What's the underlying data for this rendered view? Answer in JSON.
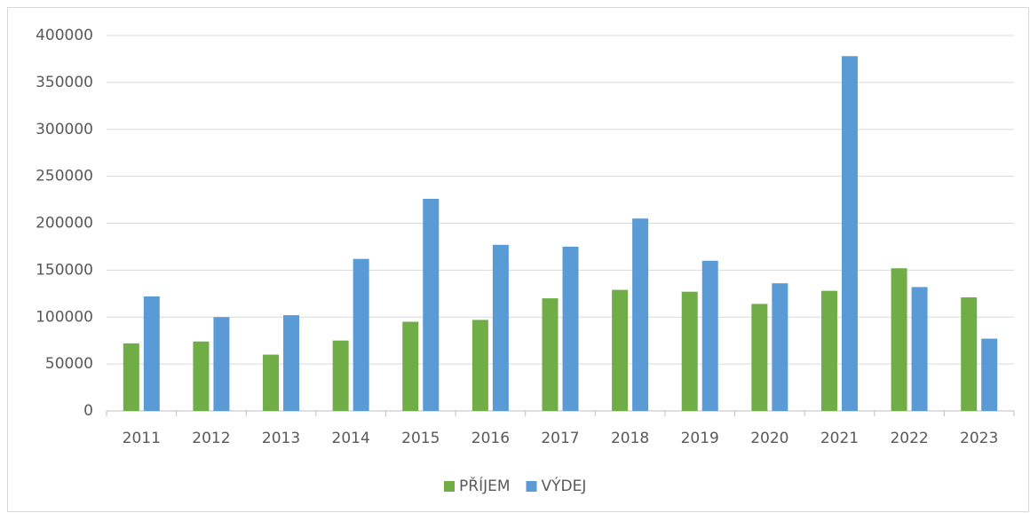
{
  "chart_data": {
    "type": "bar",
    "categories": [
      "2011",
      "2012",
      "2013",
      "2014",
      "2015",
      "2016",
      "2017",
      "2018",
      "2019",
      "2020",
      "2021",
      "2022",
      "2023"
    ],
    "series": [
      {
        "name": "PŘÍJEM",
        "color": "#70ad47",
        "values": [
          72000,
          74000,
          60000,
          75000,
          95000,
          97000,
          120000,
          129000,
          127000,
          114000,
          128000,
          152000,
          121000
        ]
      },
      {
        "name": "VÝDEJ",
        "color": "#5b9bd5",
        "values": [
          122000,
          100000,
          102000,
          162000,
          226000,
          177000,
          175000,
          205000,
          160000,
          136000,
          378000,
          132000,
          77000
        ]
      }
    ],
    "ylim": [
      0,
      400000
    ],
    "yticks": [
      0,
      50000,
      100000,
      150000,
      200000,
      250000,
      300000,
      350000,
      400000
    ],
    "grid": true,
    "legend": "bottom"
  }
}
